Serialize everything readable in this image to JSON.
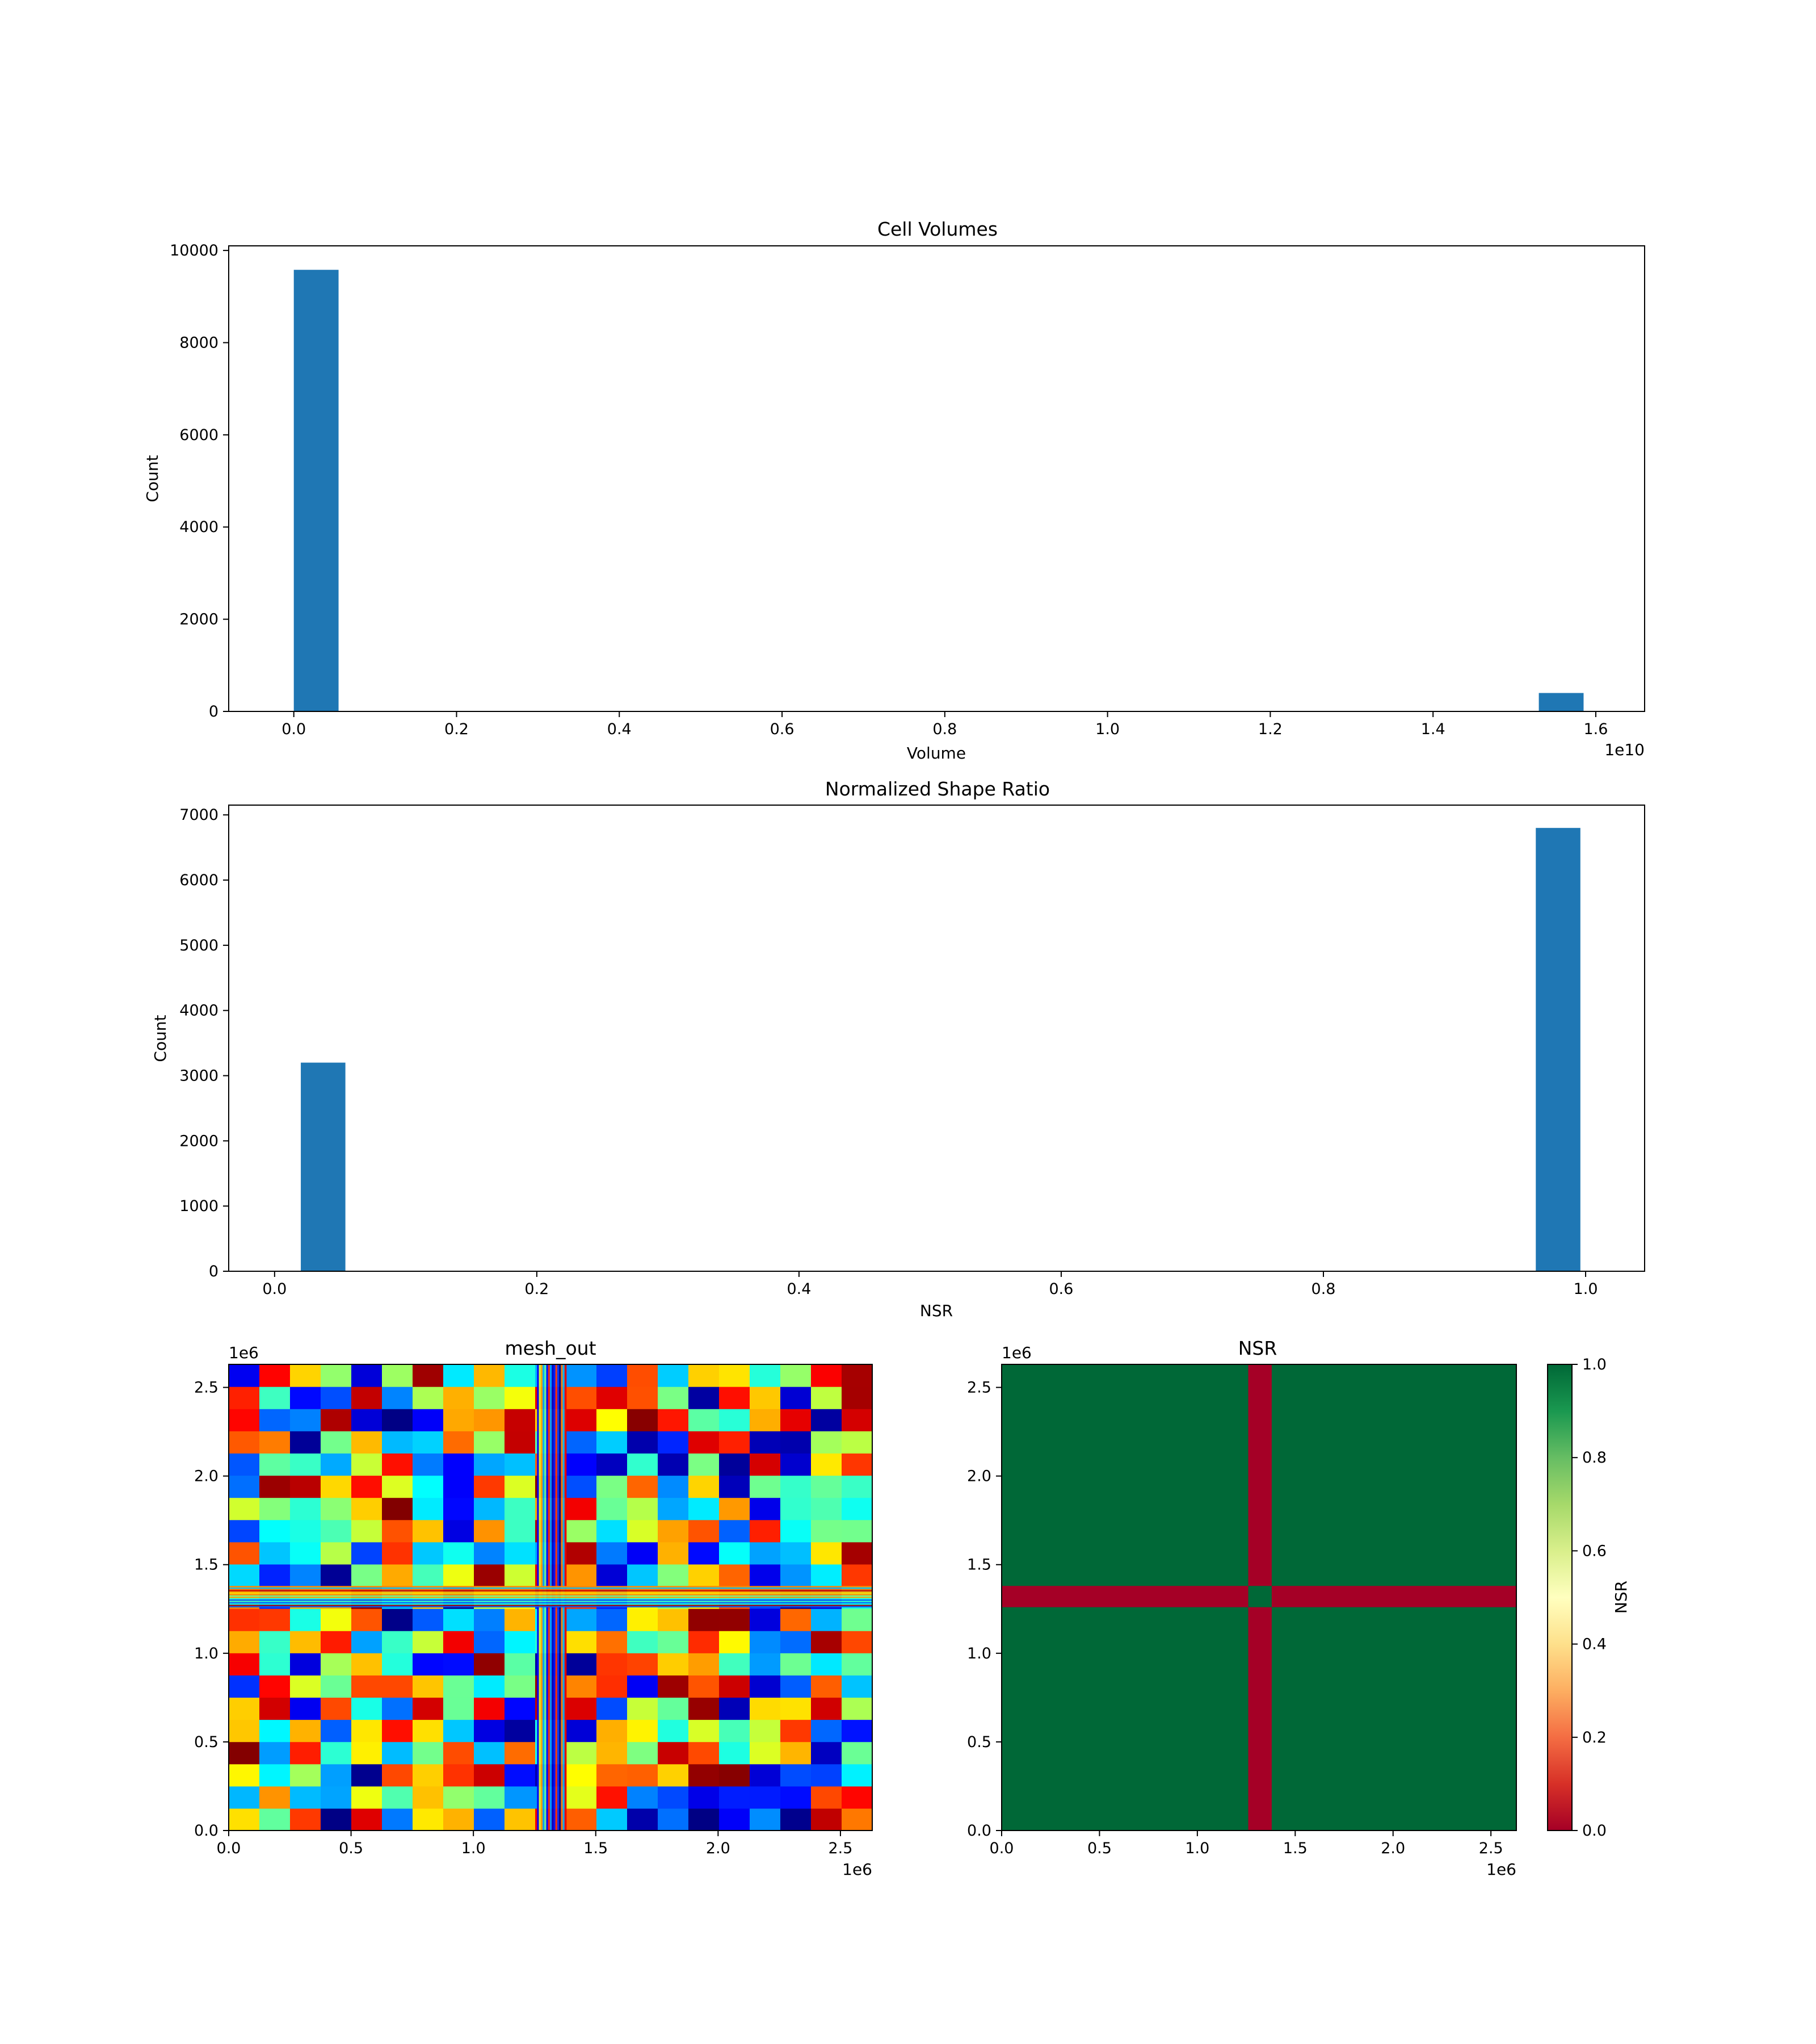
{
  "chart_data": [
    {
      "type": "bar",
      "title": "Cell Volumes",
      "xlabel": "Volume",
      "ylabel": "Count",
      "x_offset_label": "1e10",
      "xlim": [
        -0.08,
        1.66
      ],
      "ylim": [
        0,
        10100
      ],
      "xticks": [
        0.0,
        0.2,
        0.4,
        0.6,
        0.8,
        1.0,
        1.2,
        1.4,
        1.6
      ],
      "xtick_labels": [
        "0.0",
        "0.2",
        "0.4",
        "0.6",
        "0.8",
        "1.0",
        "1.2",
        "1.4",
        "1.6"
      ],
      "yticks": [
        0,
        2000,
        4000,
        6000,
        8000,
        10000
      ],
      "ytick_labels": [
        "0",
        "2000",
        "4000",
        "6000",
        "8000",
        "10000"
      ],
      "bars": [
        {
          "x0": 0.0,
          "x1": 0.055,
          "value": 9580
        },
        {
          "x0": 1.53,
          "x1": 1.585,
          "value": 400
        }
      ],
      "bar_color": "#1f77b4"
    },
    {
      "type": "bar",
      "title": "Normalized Shape Ratio",
      "xlabel": "NSR",
      "ylabel": "Count",
      "xlim": [
        -0.035,
        1.045
      ],
      "ylim": [
        0,
        7150
      ],
      "xticks": [
        0.0,
        0.2,
        0.4,
        0.6,
        0.8,
        1.0
      ],
      "xtick_labels": [
        "0.0",
        "0.2",
        "0.4",
        "0.6",
        "0.8",
        "1.0"
      ],
      "yticks": [
        0,
        1000,
        2000,
        3000,
        4000,
        5000,
        6000,
        7000
      ],
      "ytick_labels": [
        "0",
        "1000",
        "2000",
        "3000",
        "4000",
        "5000",
        "6000",
        "7000"
      ],
      "bars": [
        {
          "x0": 0.02,
          "x1": 0.054,
          "value": 3200
        },
        {
          "x0": 0.962,
          "x1": 0.996,
          "value": 6800
        }
      ],
      "bar_color": "#1f77b4"
    },
    {
      "type": "heatmap",
      "title": "mesh_out",
      "colormap": "jet",
      "x_offset_label": "1e6",
      "y_offset_label": "1e6",
      "xlim": [
        0,
        2.63
      ],
      "ylim": [
        0,
        2.63
      ],
      "xticks": [
        0.0,
        0.5,
        1.0,
        1.5,
        2.0,
        2.5
      ],
      "xtick_labels": [
        "0.0",
        "0.5",
        "1.0",
        "1.5",
        "2.0",
        "2.5"
      ],
      "yticks": [
        0.0,
        0.5,
        1.0,
        1.5,
        2.0,
        2.5
      ],
      "ytick_labels": [
        "0.0",
        "0.5",
        "1.0",
        "1.5",
        "2.0",
        "2.5"
      ],
      "grid_size": 21,
      "thin_band_center": 1.32,
      "thin_band_width": 0.12
    },
    {
      "type": "heatmap",
      "title": "NSR",
      "colormap": "RdYlGn",
      "x_offset_label": "1e6",
      "y_offset_label": "1e6",
      "xlim": [
        0,
        2.63
      ],
      "ylim": [
        0,
        2.63
      ],
      "xticks": [
        0.0,
        0.5,
        1.0,
        1.5,
        2.0,
        2.5
      ],
      "xtick_labels": [
        "0.0",
        "0.5",
        "1.0",
        "1.5",
        "2.0",
        "2.5"
      ],
      "yticks": [
        0.0,
        0.5,
        1.0,
        1.5,
        2.0,
        2.5
      ],
      "ytick_labels": [
        "0.0",
        "0.5",
        "1.0",
        "1.5",
        "2.0",
        "2.5"
      ],
      "background_value": 1.0,
      "band_value": 0.0,
      "center_value": 1.0,
      "vertical_band_x": [
        1.26,
        1.38
      ],
      "horizontal_band_y": [
        1.26,
        1.38
      ],
      "colorbar": {
        "label": "NSR",
        "range": [
          0.0,
          1.0
        ],
        "ticks": [
          0.0,
          0.2,
          0.4,
          0.6,
          0.8,
          1.0
        ],
        "tick_labels": [
          "0.0",
          "0.2",
          "0.4",
          "0.6",
          "0.8",
          "1.0"
        ]
      }
    }
  ]
}
